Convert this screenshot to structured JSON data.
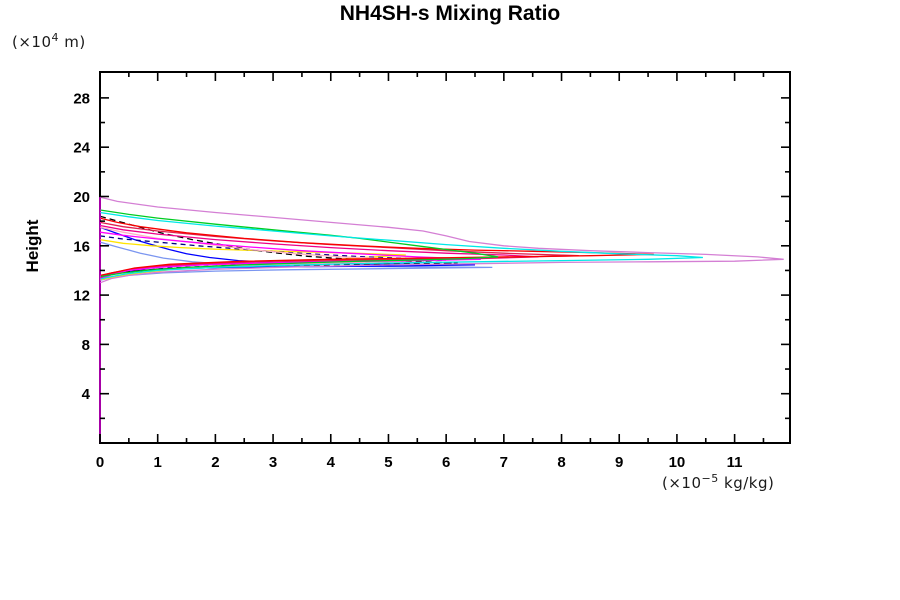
{
  "chart_data": {
    "type": "line",
    "title": "NH4SH-s Mixing Ratio",
    "ylabel": "Height",
    "y_unit": {
      "prefix": "(×10",
      "exp": "4",
      "suffix": " m)"
    },
    "x_unit": {
      "prefix": "(×10",
      "exp": "−5",
      "suffix": " kg/kg)"
    },
    "xlim": [
      0,
      11.96
    ],
    "ylim": [
      0,
      30.1
    ],
    "grid": false,
    "legend": "none",
    "x_ticks": {
      "major": [
        0,
        1,
        2,
        3,
        4,
        5,
        6,
        7,
        8,
        9,
        10,
        11
      ],
      "minor": [
        0.5,
        1.5,
        2.5,
        3.5,
        4.5,
        5.5,
        6.5,
        7.5,
        8.5,
        9.5,
        10.5,
        11.5
      ],
      "labels": [
        "0",
        "1",
        "2",
        "3",
        "4",
        "5",
        "6",
        "7",
        "8",
        "9",
        "10",
        "11"
      ]
    },
    "y_ticks": {
      "major": [
        4,
        8,
        12,
        16,
        20,
        24,
        28
      ],
      "minor": [
        2,
        6,
        10,
        14,
        18,
        22,
        26
      ],
      "labels": [
        "4",
        "8",
        "12",
        "16",
        "20",
        "24",
        "28"
      ]
    },
    "series": [
      {
        "name": "cornflower",
        "color": "#7b96f0",
        "dash": null,
        "points": [
          [
            0,
            16.3
          ],
          [
            0.3,
            15.9
          ],
          [
            0.7,
            15.4
          ],
          [
            1.1,
            15.0
          ],
          [
            1.6,
            14.7
          ],
          [
            2.2,
            14.5
          ],
          [
            3,
            14.4
          ],
          [
            4,
            14.35
          ],
          [
            5,
            14.3
          ],
          [
            6.8,
            14.25
          ],
          [
            5,
            14.15
          ],
          [
            3.2,
            14.05
          ],
          [
            2,
            13.95
          ],
          [
            1.1,
            13.8
          ],
          [
            0.5,
            13.6
          ],
          [
            0.2,
            13.4
          ],
          [
            0,
            13.2
          ]
        ]
      },
      {
        "name": "blue",
        "color": "#0000ff",
        "dash": null,
        "points": [
          [
            0,
            17.5
          ],
          [
            0.3,
            17.0
          ],
          [
            0.6,
            16.5
          ],
          [
            0.9,
            16.1
          ],
          [
            1.2,
            15.7
          ],
          [
            1.5,
            15.35
          ],
          [
            1.9,
            15.05
          ],
          [
            2.4,
            14.8
          ],
          [
            3,
            14.65
          ],
          [
            4,
            14.55
          ],
          [
            5.2,
            14.5
          ],
          [
            6.5,
            14.45
          ],
          [
            5,
            14.35
          ],
          [
            3.5,
            14.3
          ],
          [
            2.2,
            14.25
          ],
          [
            1.3,
            14.15
          ],
          [
            0.7,
            14.0
          ],
          [
            0.3,
            13.8
          ],
          [
            0,
            13.5
          ]
        ]
      },
      {
        "name": "yellow",
        "color": "#ffe400",
        "dash": null,
        "points": [
          [
            0,
            16.5
          ],
          [
            0.4,
            16.2
          ],
          [
            0.9,
            16.0
          ],
          [
            1.4,
            15.85
          ],
          [
            2,
            15.72
          ],
          [
            2.8,
            15.6
          ],
          [
            3.6,
            15.5
          ],
          [
            4.4,
            15.4
          ],
          [
            5.3,
            15.25
          ],
          [
            4.4,
            15.0
          ],
          [
            3.4,
            14.7
          ],
          [
            2.4,
            14.5
          ],
          [
            1.4,
            14.15
          ],
          [
            0.7,
            13.8
          ],
          [
            0.3,
            13.5
          ],
          [
            0,
            13.25
          ]
        ]
      },
      {
        "name": "navy-dashed",
        "color": "#000080",
        "dash": "5 4",
        "points": [
          [
            0,
            16.8
          ],
          [
            0.4,
            16.55
          ],
          [
            1,
            16.3
          ],
          [
            1.7,
            16.0
          ],
          [
            2.4,
            15.75
          ],
          [
            3.1,
            15.5
          ],
          [
            3.8,
            15.3
          ],
          [
            4.6,
            15.1
          ],
          [
            5.4,
            14.95
          ],
          [
            6.0,
            14.85
          ],
          [
            4.8,
            14.7
          ],
          [
            3.5,
            14.55
          ],
          [
            2.2,
            14.4
          ],
          [
            1.2,
            14.2
          ],
          [
            0.6,
            13.95
          ],
          [
            0.2,
            13.7
          ],
          [
            0,
            13.4
          ]
        ]
      },
      {
        "name": "black-dashed",
        "color": "#000000",
        "dash": "6 4",
        "points": [
          [
            0,
            18.4
          ],
          [
            0.3,
            18.0
          ],
          [
            0.7,
            17.5
          ],
          [
            1.1,
            17.0
          ],
          [
            1.6,
            16.5
          ],
          [
            2.1,
            16.1
          ],
          [
            2.6,
            15.7
          ],
          [
            3.1,
            15.4
          ],
          [
            3.6,
            15.15
          ],
          [
            4.2,
            14.95
          ],
          [
            5,
            14.8
          ],
          [
            6.2,
            14.6
          ],
          [
            4.5,
            14.5
          ],
          [
            3,
            14.4
          ],
          [
            1.8,
            14.25
          ],
          [
            1,
            14.1
          ],
          [
            0.5,
            13.9
          ],
          [
            0.2,
            13.7
          ],
          [
            0,
            13.45
          ]
        ]
      },
      {
        "name": "pink",
        "color": "#ffb0c0",
        "dash": null,
        "points": [
          [
            0,
            17.5
          ],
          [
            0.4,
            17.1
          ],
          [
            1,
            16.6
          ],
          [
            1.8,
            16.15
          ],
          [
            2.6,
            15.7
          ],
          [
            3.4,
            15.35
          ],
          [
            4.2,
            15.1
          ],
          [
            5,
            14.95
          ],
          [
            5.6,
            14.8
          ],
          [
            4.5,
            14.65
          ],
          [
            3.2,
            14.5
          ],
          [
            2,
            14.3
          ],
          [
            1.2,
            14.1
          ],
          [
            0.6,
            13.85
          ],
          [
            0.3,
            13.6
          ],
          [
            0,
            13.3
          ]
        ]
      },
      {
        "name": "deep-pink",
        "color": "#ee0088",
        "dash": null,
        "points": [
          [
            0,
            17.65
          ],
          [
            0.4,
            17.3
          ],
          [
            1,
            16.95
          ],
          [
            2,
            16.5
          ],
          [
            3,
            16.15
          ],
          [
            4,
            15.85
          ],
          [
            5,
            15.6
          ],
          [
            6,
            15.4
          ],
          [
            7,
            15.25
          ],
          [
            7.6,
            15.1
          ],
          [
            6.5,
            14.95
          ],
          [
            5,
            14.85
          ],
          [
            3.5,
            14.7
          ],
          [
            2,
            14.55
          ],
          [
            1,
            14.3
          ],
          [
            0.5,
            14.0
          ],
          [
            0.2,
            13.7
          ],
          [
            0,
            13.4
          ]
        ]
      },
      {
        "name": "crimson",
        "color": "#e02050",
        "dash": null,
        "points": [
          [
            0,
            17.9
          ],
          [
            0.4,
            17.55
          ],
          [
            1,
            17.2
          ],
          [
            2,
            16.75
          ],
          [
            3,
            16.4
          ],
          [
            4,
            16.1
          ],
          [
            5,
            15.85
          ],
          [
            6,
            15.6
          ],
          [
            7,
            15.4
          ],
          [
            8.3,
            15.2
          ],
          [
            7,
            15.05
          ],
          [
            5.5,
            14.95
          ],
          [
            4,
            14.85
          ],
          [
            2.5,
            14.7
          ],
          [
            1.2,
            14.45
          ],
          [
            0.6,
            14.15
          ],
          [
            0.2,
            13.8
          ],
          [
            0,
            13.55
          ]
        ]
      },
      {
        "name": "magenta",
        "color": "#ff00ff",
        "dash": null,
        "points": [
          [
            0,
            17.1
          ],
          [
            0.4,
            16.85
          ],
          [
            1,
            16.55
          ],
          [
            1.8,
            16.2
          ],
          [
            2.6,
            15.9
          ],
          [
            3.5,
            15.6
          ],
          [
            4.5,
            15.35
          ],
          [
            5.5,
            15.1
          ],
          [
            6.6,
            14.9
          ],
          [
            5.5,
            14.8
          ],
          [
            4,
            14.7
          ],
          [
            2.8,
            14.6
          ],
          [
            1.8,
            14.45
          ],
          [
            1,
            14.25
          ],
          [
            0.5,
            14.0
          ],
          [
            0.2,
            13.65
          ],
          [
            0,
            13.3
          ]
        ]
      },
      {
        "name": "red",
        "color": "#f80000",
        "dash": null,
        "points": [
          [
            0,
            18.25
          ],
          [
            0.3,
            17.9
          ],
          [
            0.7,
            17.55
          ],
          [
            1.5,
            17.05
          ],
          [
            2.5,
            16.6
          ],
          [
            3.5,
            16.25
          ],
          [
            4.5,
            16.0
          ],
          [
            5.5,
            15.8
          ],
          [
            6.5,
            15.65
          ],
          [
            7.5,
            15.55
          ],
          [
            8.5,
            15.45
          ],
          [
            9.6,
            15.3
          ],
          [
            8.5,
            15.2
          ],
          [
            7,
            15.1
          ],
          [
            5.5,
            15.0
          ],
          [
            4,
            14.9
          ],
          [
            2.5,
            14.75
          ],
          [
            1.2,
            14.5
          ],
          [
            0.6,
            14.2
          ],
          [
            0.3,
            13.9
          ],
          [
            0,
            13.6
          ]
        ]
      },
      {
        "name": "green",
        "color": "#00cc22",
        "dash": null,
        "points": [
          [
            0,
            18.9
          ],
          [
            0.5,
            18.55
          ],
          [
            1,
            18.25
          ],
          [
            2,
            17.75
          ],
          [
            3,
            17.3
          ],
          [
            4,
            16.85
          ],
          [
            4.5,
            16.6
          ],
          [
            5,
            16.3
          ],
          [
            5.5,
            16.0
          ],
          [
            6,
            15.7
          ],
          [
            6.5,
            15.4
          ],
          [
            6.9,
            15.1
          ],
          [
            6.3,
            14.95
          ],
          [
            5.5,
            14.85
          ],
          [
            4.5,
            14.75
          ],
          [
            3.5,
            14.6
          ],
          [
            2.5,
            14.45
          ],
          [
            1.5,
            14.25
          ],
          [
            0.8,
            14.0
          ],
          [
            0.4,
            13.8
          ],
          [
            0,
            13.5
          ]
        ]
      },
      {
        "name": "cyan",
        "color": "#00e8e8",
        "dash": null,
        "points": [
          [
            0,
            18.7
          ],
          [
            0.5,
            18.35
          ],
          [
            1,
            18.05
          ],
          [
            2,
            17.6
          ],
          [
            3,
            17.2
          ],
          [
            4,
            16.8
          ],
          [
            5,
            16.45
          ],
          [
            6,
            16.1
          ],
          [
            7,
            15.8
          ],
          [
            8,
            15.55
          ],
          [
            9,
            15.35
          ],
          [
            10,
            15.2
          ],
          [
            10.45,
            15.05
          ],
          [
            9.5,
            14.9
          ],
          [
            8,
            14.8
          ],
          [
            6.5,
            14.7
          ],
          [
            5,
            14.6
          ],
          [
            3.5,
            14.45
          ],
          [
            2,
            14.25
          ],
          [
            1,
            14.0
          ],
          [
            0.5,
            13.75
          ],
          [
            0.2,
            13.5
          ],
          [
            0,
            13.3
          ]
        ]
      },
      {
        "name": "violet",
        "color": "#d47fd4",
        "dash": null,
        "points": [
          [
            0,
            19.95
          ],
          [
            0.3,
            19.6
          ],
          [
            1,
            19.15
          ],
          [
            2,
            18.7
          ],
          [
            3,
            18.3
          ],
          [
            4,
            17.9
          ],
          [
            5,
            17.5
          ],
          [
            5.6,
            17.2
          ],
          [
            6,
            16.8
          ],
          [
            6.4,
            16.35
          ],
          [
            7,
            16.0
          ],
          [
            7.6,
            15.8
          ],
          [
            8.5,
            15.6
          ],
          [
            9.5,
            15.45
          ],
          [
            10.5,
            15.3
          ],
          [
            11.4,
            15.1
          ],
          [
            11.85,
            14.9
          ],
          [
            11.0,
            14.75
          ],
          [
            9.5,
            14.7
          ],
          [
            8,
            14.65
          ],
          [
            6.5,
            14.55
          ],
          [
            5,
            14.45
          ],
          [
            3.5,
            14.3
          ],
          [
            2,
            14.1
          ],
          [
            1,
            13.85
          ],
          [
            0.5,
            13.6
          ],
          [
            0.2,
            13.35
          ],
          [
            0,
            13.0
          ]
        ]
      },
      {
        "name": "magenta-zero",
        "color": "#ff00ff",
        "dash": null,
        "points": [
          [
            0,
            0
          ],
          [
            0,
            19.95
          ]
        ]
      }
    ]
  }
}
